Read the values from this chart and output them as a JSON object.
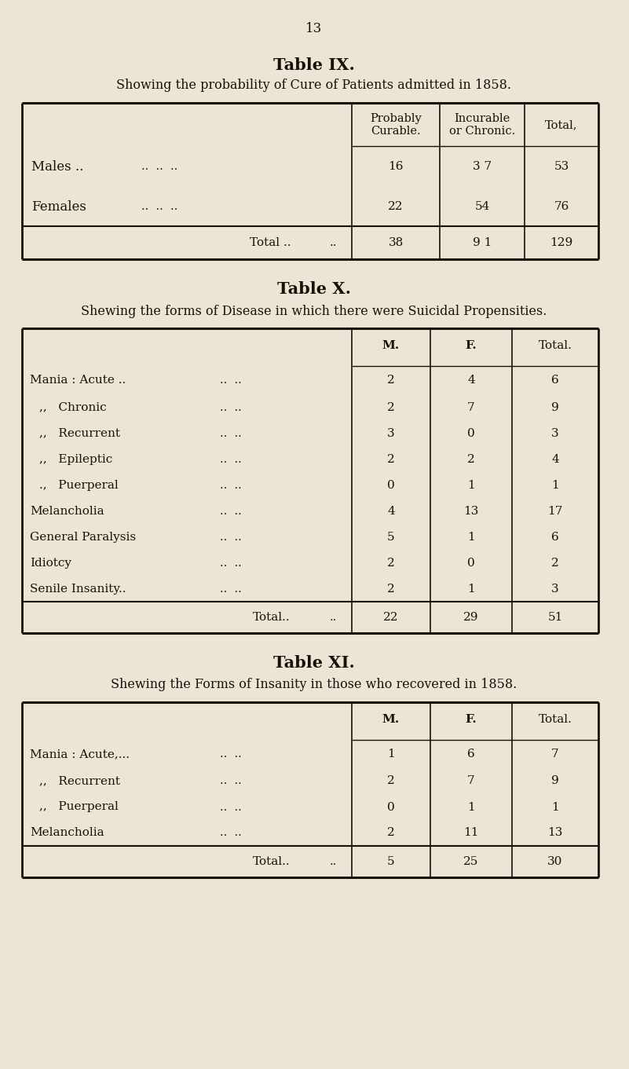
{
  "bg_color": "#ece5d5",
  "page_number": "13",
  "text_color": "#1a1008",
  "line_color": "#1a1008",
  "table9": {
    "title": "Table IX.",
    "subtitle": "Showing the probability of Cure of Patients admitted in 1858.",
    "col_headers_line1": [
      "Probably",
      "Incurable",
      "Total,"
    ],
    "col_headers_line2": [
      "Curable.",
      "or Chronic.",
      ""
    ],
    "rows": [
      {
        "label": "Males ..",
        "dots": "..  ..  ..",
        "vals": [
          "16",
          "3 7",
          "53"
        ]
      },
      {
        "label": "Females",
        "dots": "..  ..  ..",
        "vals": [
          "22",
          "54",
          "76"
        ]
      },
      {
        "label": "Total ..",
        "dots": "..",
        "vals": [
          "38",
          "9 1",
          "129"
        ]
      }
    ]
  },
  "table10": {
    "title": "Table X.",
    "subtitle": "Shewing the forms of Disease in which there were Suicidal Propensities.",
    "col_headers": [
      "M.",
      "F.",
      "Total."
    ],
    "rows": [
      {
        "label": "Mania : Acute ..",
        "indent": false,
        "dots": "..  ..",
        "vals": [
          "2",
          "4",
          "6"
        ]
      },
      {
        "label": ",,   Chronic",
        "indent": true,
        "dots": "..  ..",
        "vals": [
          "2",
          "7",
          "9"
        ]
      },
      {
        "label": ",,   Recurrent",
        "indent": true,
        "dots": "..  ..",
        "vals": [
          "3",
          "0",
          "3"
        ]
      },
      {
        "label": ",,   Epileptic",
        "indent": true,
        "dots": "..  ..",
        "vals": [
          "2",
          "2",
          "4"
        ]
      },
      {
        "label": ".,   Puerperal",
        "indent": true,
        "dots": "..  ..",
        "vals": [
          "0",
          "1",
          "1"
        ]
      },
      {
        "label": "Melancholia",
        "indent": false,
        "dots": "..  ..",
        "vals": [
          "4",
          "13",
          "17"
        ]
      },
      {
        "label": "General Paralysis",
        "indent": false,
        "dots": "..  ..",
        "vals": [
          "5",
          "1",
          "6"
        ]
      },
      {
        "label": "Idiotcy",
        "indent": false,
        "dots": "..  ..",
        "vals": [
          "2",
          "0",
          "2"
        ]
      },
      {
        "label": "Senile Insanity..",
        "indent": false,
        "dots": "..  ..",
        "vals": [
          "2",
          "1",
          "3"
        ]
      },
      {
        "label": "Total..",
        "indent": false,
        "dots": "..",
        "vals": [
          "22",
          "29",
          "51"
        ]
      }
    ]
  },
  "table11": {
    "title": "Table XI.",
    "subtitle": "Shewing the Forms of Insanity in those who recovered in 1858.",
    "col_headers": [
      "M.",
      "F.",
      "Total."
    ],
    "rows": [
      {
        "label": "Mania : Acute,...",
        "indent": false,
        "dots": "..  ..",
        "vals": [
          "1",
          "6",
          "7"
        ]
      },
      {
        "label": ",,   Recurrent",
        "indent": true,
        "dots": "..  ..",
        "vals": [
          "2",
          "7",
          "9"
        ]
      },
      {
        "label": ",,   Puerperal",
        "indent": true,
        "dots": "..  ..",
        "vals": [
          "0",
          "1",
          "1"
        ]
      },
      {
        "label": "Melancholia",
        "indent": false,
        "dots": "..  ..",
        "vals": [
          "2",
          "11",
          "13"
        ]
      },
      {
        "label": "Total..",
        "indent": false,
        "dots": "..",
        "vals": [
          "5",
          "25",
          "30"
        ]
      }
    ]
  }
}
